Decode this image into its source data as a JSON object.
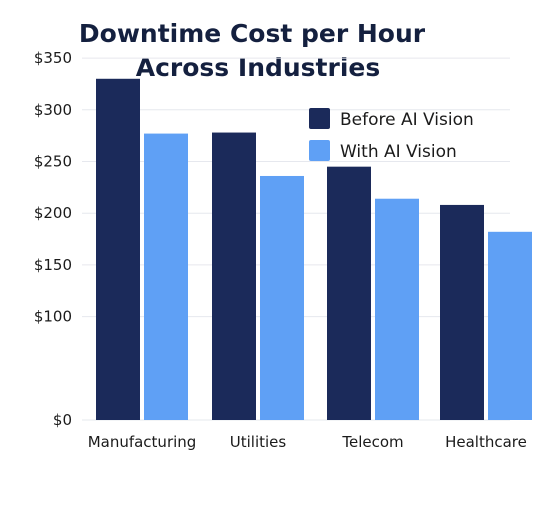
{
  "chart_data": {
    "type": "bar",
    "title_lines": [
      "Downtime Cost per Hour",
      "Across Industries"
    ],
    "xlabel": "",
    "ylabel": "",
    "categories": [
      "Manufacturing",
      "Utilities",
      "Telecom",
      "Healthcare"
    ],
    "series": [
      {
        "name": "Before AI Vision",
        "color": "#1b2a5a",
        "values": [
          330,
          278,
          245,
          208
        ]
      },
      {
        "name": "With AI Vision",
        "color": "#5fa0f5",
        "values": [
          277,
          236,
          214,
          182
        ]
      }
    ],
    "ylim": [
      0,
      350
    ],
    "yticks": [
      0,
      100,
      150,
      200,
      250,
      300,
      350
    ],
    "ytick_labels": [
      "$0",
      "$100",
      "$150",
      "$200",
      "$250",
      "$300",
      "$350"
    ],
    "grid": true,
    "legend_position": "top-right"
  }
}
